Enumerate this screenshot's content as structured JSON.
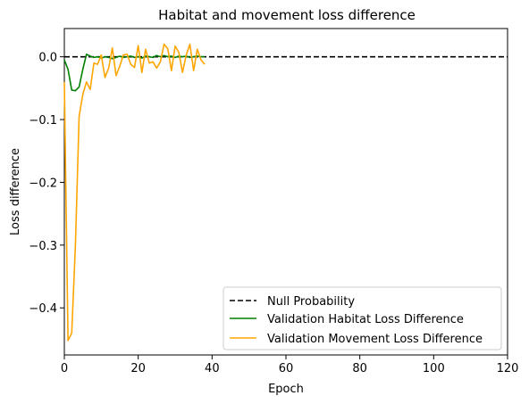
{
  "chart_data": {
    "type": "line",
    "title": "Habitat and movement loss difference",
    "xlabel": "Epoch",
    "ylabel": "Loss difference",
    "xlim": [
      0,
      120
    ],
    "ylim": [
      -0.475,
      0.045
    ],
    "xticks": [
      0,
      20,
      40,
      60,
      80,
      100,
      120
    ],
    "xtick_labels": [
      "0",
      "20",
      "40",
      "60",
      "80",
      "100",
      "120"
    ],
    "yticks": [
      0.0,
      -0.1,
      -0.2,
      -0.3,
      -0.4
    ],
    "ytick_labels": [
      "0.0",
      "−0.1",
      "−0.2",
      "−0.3",
      "−0.4"
    ],
    "grid": false,
    "legend_position": "lower-right",
    "series": [
      {
        "name": "Null Probability",
        "color": "#000000",
        "dash": "dashed",
        "x": [
          0,
          120
        ],
        "y": [
          0,
          0
        ]
      },
      {
        "name": "Validation Habitat Loss Difference",
        "color": "#008000",
        "dash": "solid",
        "x": [
          0,
          1,
          2,
          3,
          4,
          5,
          6,
          7,
          8,
          9,
          10,
          11,
          12,
          13,
          14,
          15,
          16,
          17,
          18,
          19,
          20,
          21,
          22,
          23,
          24,
          25,
          26,
          27,
          28,
          29,
          30,
          31,
          32,
          33,
          34,
          35,
          36,
          37,
          38
        ],
        "y": [
          -0.005,
          -0.02,
          -0.053,
          -0.054,
          -0.048,
          -0.02,
          0.004,
          0.001,
          -0.001,
          0.0,
          -0.002,
          0.0,
          -0.001,
          -0.003,
          -0.001,
          0.001,
          -0.001,
          0.0,
          0.001,
          -0.001,
          0.0,
          -0.002,
          0.001,
          0.0,
          -0.001,
          0.002,
          0.0,
          0.002,
          0.0,
          0.001,
          -0.001,
          0.001,
          0.0,
          0.001,
          -0.001,
          0.0,
          0.001,
          0.0,
          0.0
        ]
      },
      {
        "name": "Validation Movement Loss Difference",
        "color": "#ffa500",
        "dash": "solid",
        "x": [
          0,
          1,
          2,
          3,
          4,
          5,
          6,
          7,
          8,
          9,
          10,
          11,
          12,
          13,
          14,
          15,
          16,
          17,
          18,
          19,
          20,
          21,
          22,
          23,
          24,
          25,
          26,
          27,
          28,
          29,
          30,
          31,
          32,
          33,
          34,
          35,
          36,
          37,
          38
        ],
        "y": [
          -0.04,
          -0.452,
          -0.44,
          -0.3,
          -0.095,
          -0.06,
          -0.04,
          -0.052,
          -0.01,
          -0.012,
          0.003,
          -0.033,
          -0.018,
          0.014,
          -0.03,
          -0.015,
          0.003,
          0.004,
          -0.012,
          -0.017,
          0.018,
          -0.025,
          0.012,
          -0.01,
          -0.008,
          -0.018,
          -0.008,
          0.02,
          0.013,
          -0.022,
          0.017,
          0.007,
          -0.025,
          0.003,
          0.02,
          -0.022,
          0.012,
          -0.005,
          -0.012
        ]
      }
    ]
  }
}
